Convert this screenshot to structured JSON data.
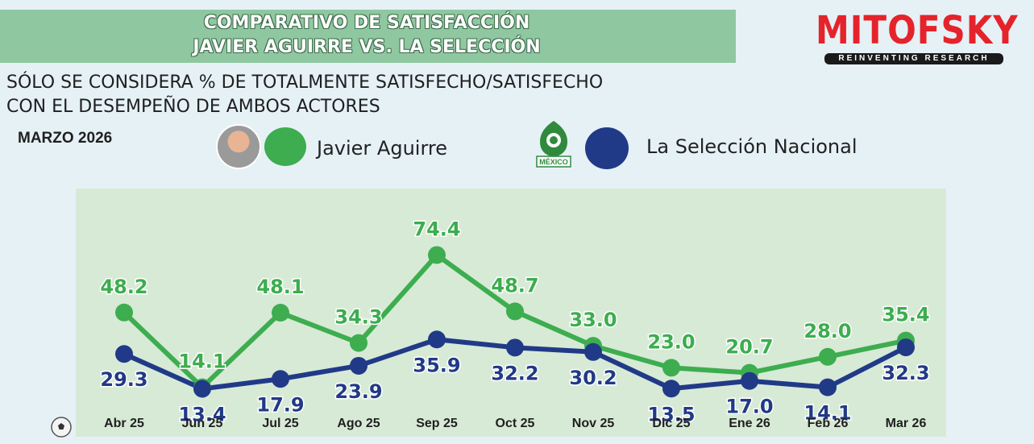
{
  "header": {
    "title_line1": "COMPARATIVO DE SATISFACCIÓN",
    "title_line2": "JAVIER AGUIRRE VS. LA SELECCIÓN",
    "subtitle_line1": "SÓLO SE CONSIDERA % DE TOTALMENTE SATISFECHO/SATISFECHO",
    "subtitle_line2": "CON EL DESEMPEÑO DE AMBOS ACTORES",
    "date": "MARZO 2026"
  },
  "brand": {
    "name": "MITOFSKY",
    "tagline": "REINVENTING RESEARCH",
    "color": "#e5232b"
  },
  "legend": {
    "aguirre_label": "Javier Aguirre",
    "seleccion_label": "La Selección Nacional",
    "crest_text": "MÉXICO"
  },
  "chart_data": {
    "type": "line",
    "categories": [
      "Abr 25",
      "Jun 25",
      "Jul 25",
      "Ago 25",
      "Sep 25",
      "Oct 25",
      "Nov 25",
      "Dic 25",
      "Ene 26",
      "Feb 26",
      "Mar 26"
    ],
    "series": [
      {
        "name": "Javier Aguirre",
        "color": "#3dad4f",
        "values": [
          48.2,
          14.1,
          48.1,
          34.3,
          74.4,
          48.7,
          33.0,
          23.0,
          20.7,
          28.0,
          35.4
        ],
        "labels": [
          "48.2",
          "14.1",
          "48.1",
          "34.3",
          "74.4",
          "48.7",
          "33.0",
          "23.0",
          "20.7",
          "28.0",
          "35.4"
        ]
      },
      {
        "name": "La Selección Nacional",
        "color": "#213a87",
        "values": [
          29.3,
          13.4,
          17.9,
          23.9,
          35.9,
          32.2,
          30.2,
          13.5,
          17.0,
          14.1,
          32.3
        ],
        "labels": [
          "29.3",
          "13.4",
          "17.9",
          "23.9",
          "35.9",
          "32.2",
          "30.2",
          "13.5",
          "17.0",
          "14.1",
          "32.3"
        ]
      }
    ],
    "ylim": [
      0,
      90
    ],
    "grid": false,
    "title": "",
    "xlabel": "",
    "ylabel": ""
  }
}
